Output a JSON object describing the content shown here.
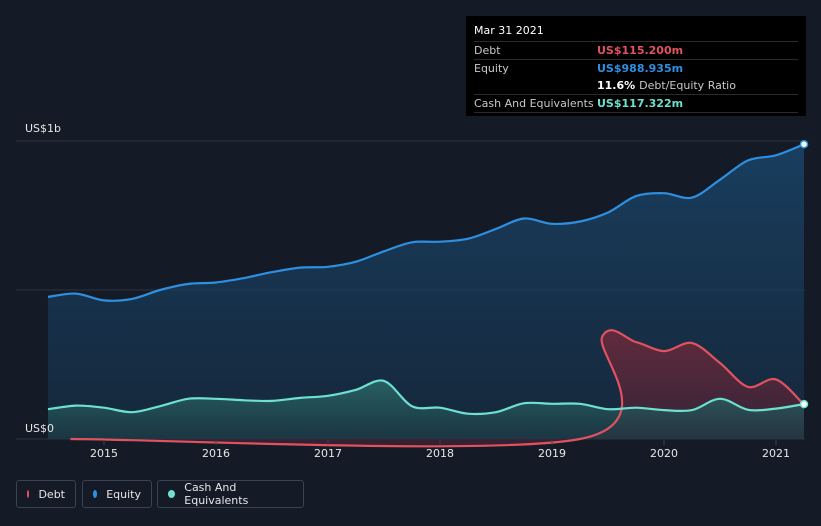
{
  "tooltip": {
    "date": "Mar 31 2021",
    "debt_label": "Debt",
    "debt_value": "US$115.200m",
    "equity_label": "Equity",
    "equity_value": "US$988.935m",
    "ratio_value": "11.6%",
    "ratio_label": "Debt/Equity Ratio",
    "cash_label": "Cash And Equivalents",
    "cash_value": "US$117.322m"
  },
  "legend": [
    {
      "label": "Debt",
      "color": "#e05260"
    },
    {
      "label": "Equity",
      "color": "#2e8fe0"
    },
    {
      "label": "Cash And Equivalents",
      "color": "#6ee0d0"
    }
  ],
  "colors": {
    "background": "#151b26",
    "debt": "#e05260",
    "equity": "#2e8fe0",
    "cash": "#6ee0d0",
    "debt_value_text": "#e05260",
    "equity_value_text": "#2e8fe0",
    "cash_value_text": "#6ee0d0"
  },
  "chart_data": {
    "type": "area",
    "y_top_label": "US$1b",
    "y_bottom_label": "US$0",
    "ylim": [
      0,
      1000
    ],
    "xlim": [
      2014.5,
      2021.25
    ],
    "x_ticks": [
      "2015",
      "2016",
      "2017",
      "2018",
      "2019",
      "2020",
      "2021"
    ],
    "grid": true,
    "series": [
      {
        "name": "Equity",
        "points": [
          [
            2014.5,
            477
          ],
          [
            2014.75,
            488
          ],
          [
            2015.0,
            465
          ],
          [
            2015.25,
            470
          ],
          [
            2015.5,
            500
          ],
          [
            2015.75,
            520
          ],
          [
            2016.0,
            525
          ],
          [
            2016.25,
            540
          ],
          [
            2016.5,
            560
          ],
          [
            2016.75,
            575
          ],
          [
            2017.0,
            578
          ],
          [
            2017.25,
            595
          ],
          [
            2017.5,
            630
          ],
          [
            2017.75,
            660
          ],
          [
            2018.0,
            662
          ],
          [
            2018.25,
            672
          ],
          [
            2018.5,
            705
          ],
          [
            2018.75,
            740
          ],
          [
            2019.0,
            722
          ],
          [
            2019.25,
            730
          ],
          [
            2019.5,
            760
          ],
          [
            2019.75,
            815
          ],
          [
            2020.0,
            825
          ],
          [
            2020.25,
            810
          ],
          [
            2020.5,
            870
          ],
          [
            2020.75,
            935
          ],
          [
            2021.0,
            952
          ],
          [
            2021.25,
            989
          ]
        ]
      },
      {
        "name": "Debt",
        "points": [
          [
            2014.7,
            0
          ],
          [
            2019.25,
            0
          ],
          [
            2019.45,
            345
          ],
          [
            2019.75,
            325
          ],
          [
            2020.0,
            295
          ],
          [
            2020.25,
            322
          ],
          [
            2020.5,
            255
          ],
          [
            2020.75,
            175
          ],
          [
            2021.0,
            200
          ],
          [
            2021.25,
            115
          ]
        ]
      },
      {
        "name": "Cash And Equivalents",
        "points": [
          [
            2014.5,
            100
          ],
          [
            2014.75,
            112
          ],
          [
            2015.0,
            105
          ],
          [
            2015.25,
            90
          ],
          [
            2015.5,
            110
          ],
          [
            2015.75,
            135
          ],
          [
            2016.0,
            135
          ],
          [
            2016.25,
            130
          ],
          [
            2016.5,
            128
          ],
          [
            2016.75,
            138
          ],
          [
            2017.0,
            145
          ],
          [
            2017.25,
            165
          ],
          [
            2017.5,
            195
          ],
          [
            2017.75,
            110
          ],
          [
            2018.0,
            105
          ],
          [
            2018.25,
            85
          ],
          [
            2018.5,
            90
          ],
          [
            2018.75,
            120
          ],
          [
            2019.0,
            118
          ],
          [
            2019.25,
            118
          ],
          [
            2019.5,
            100
          ],
          [
            2019.75,
            105
          ],
          [
            2020.0,
            97
          ],
          [
            2020.25,
            97
          ],
          [
            2020.5,
            135
          ],
          [
            2020.75,
            98
          ],
          [
            2021.0,
            102
          ],
          [
            2021.25,
            117
          ]
        ]
      }
    ]
  }
}
